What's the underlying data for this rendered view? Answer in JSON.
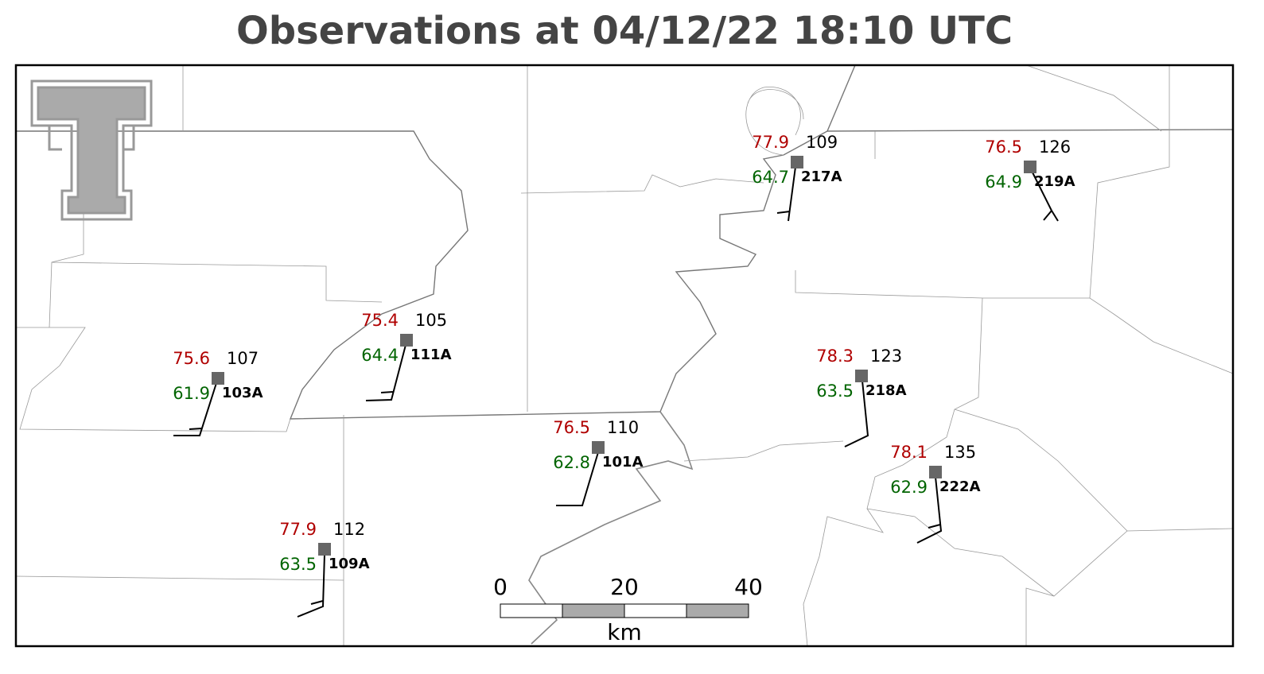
{
  "header": {
    "title": "Observations at 04/12/22 18:10 UTC"
  },
  "stations": [
    {
      "id": "217A",
      "temperature": 77.9,
      "dewpoint": 64.7,
      "pressure": 109
    },
    {
      "id": "219A",
      "temperature": 76.5,
      "dewpoint": 64.9,
      "pressure": 126
    },
    {
      "id": "111A",
      "temperature": 75.4,
      "dewpoint": 64.4,
      "pressure": 105
    },
    {
      "id": "103A",
      "temperature": 75.6,
      "dewpoint": 61.9,
      "pressure": 107
    },
    {
      "id": "218A",
      "temperature": 78.3,
      "dewpoint": 63.5,
      "pressure": 123
    },
    {
      "id": "101A",
      "temperature": 76.5,
      "dewpoint": 62.8,
      "pressure": 110
    },
    {
      "id": "222A",
      "temperature": 78.1,
      "dewpoint": 62.9,
      "pressure": 135
    },
    {
      "id": "109A",
      "temperature": 77.9,
      "dewpoint": 63.5,
      "pressure": 112
    }
  ],
  "scale_bar": {
    "ticks": [
      0,
      20,
      40
    ],
    "unit": "km"
  }
}
